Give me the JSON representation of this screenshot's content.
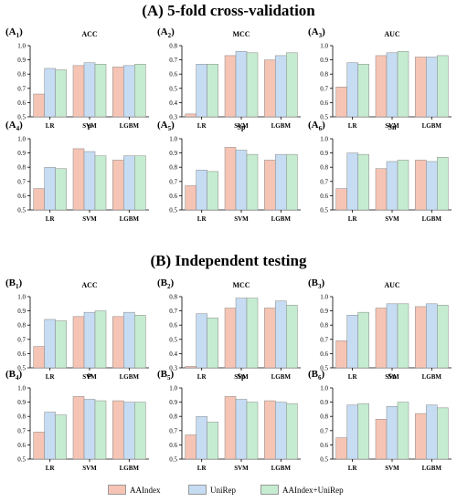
{
  "section_a_title": "(A) 5-fold cross-validation",
  "section_b_title": "(B) Independent testing",
  "series_names": [
    "AAIndex",
    "UniRep",
    "AAIndex+UniRep"
  ],
  "colors": {
    "AAIndex": "#f6c4b4",
    "UniRep": "#c5dcf3",
    "AAIndex+UniRep": "#c5ecd0",
    "edge": "#888888"
  },
  "chart_data": [
    {
      "type": "bar",
      "panel": "A",
      "subscript": "1",
      "title": "ACC",
      "categories": [
        "LR",
        "SVM",
        "LGBM"
      ],
      "ylim": [
        0.5,
        1.0
      ],
      "ticks": [
        0.5,
        0.6,
        0.7,
        0.8,
        0.9,
        1.0
      ],
      "series": [
        {
          "name": "AAIndex",
          "values": [
            0.66,
            0.86,
            0.85
          ]
        },
        {
          "name": "UniRep",
          "values": [
            0.84,
            0.88,
            0.86
          ]
        },
        {
          "name": "AAIndex+UniRep",
          "values": [
            0.83,
            0.87,
            0.87
          ]
        }
      ]
    },
    {
      "type": "bar",
      "panel": "A",
      "subscript": "2",
      "title": "MCC",
      "categories": [
        "LR",
        "SVM",
        "LGBM"
      ],
      "ylim": [
        0.3,
        0.8
      ],
      "ticks": [
        0.3,
        0.4,
        0.5,
        0.6,
        0.7,
        0.8
      ],
      "series": [
        {
          "name": "AAIndex",
          "values": [
            0.32,
            0.73,
            0.7
          ]
        },
        {
          "name": "UniRep",
          "values": [
            0.67,
            0.76,
            0.73
          ]
        },
        {
          "name": "AAIndex+UniRep",
          "values": [
            0.67,
            0.75,
            0.75
          ]
        }
      ]
    },
    {
      "type": "bar",
      "panel": "A",
      "subscript": "3",
      "title": "AUC",
      "categories": [
        "LR",
        "SVM",
        "LGBM"
      ],
      "ylim": [
        0.5,
        1.0
      ],
      "ticks": [
        0.5,
        0.6,
        0.7,
        0.8,
        0.9,
        1.0
      ],
      "series": [
        {
          "name": "AAIndex",
          "values": [
            0.71,
            0.93,
            0.92
          ]
        },
        {
          "name": "UniRep",
          "values": [
            0.88,
            0.95,
            0.92
          ]
        },
        {
          "name": "AAIndex+UniRep",
          "values": [
            0.87,
            0.96,
            0.93
          ]
        }
      ]
    },
    {
      "type": "bar",
      "panel": "A",
      "subscript": "4",
      "title": "P",
      "categories": [
        "LR",
        "SVM",
        "LGBM"
      ],
      "ylim": [
        0.5,
        1.0
      ],
      "ticks": [
        0.5,
        0.6,
        0.7,
        0.8,
        0.9,
        1.0
      ],
      "series": [
        {
          "name": "AAIndex",
          "values": [
            0.65,
            0.93,
            0.85
          ]
        },
        {
          "name": "UniRep",
          "values": [
            0.8,
            0.91,
            0.88
          ]
        },
        {
          "name": "AAIndex+UniRep",
          "values": [
            0.79,
            0.88,
            0.88
          ]
        }
      ]
    },
    {
      "type": "bar",
      "panel": "A",
      "subscript": "5",
      "title": "Sp",
      "categories": [
        "LR",
        "SVM",
        "LGBM"
      ],
      "ylim": [
        0.5,
        1.0
      ],
      "ticks": [
        0.5,
        0.6,
        0.7,
        0.8,
        0.9,
        1.0
      ],
      "series": [
        {
          "name": "AAIndex",
          "values": [
            0.67,
            0.94,
            0.85
          ]
        },
        {
          "name": "UniRep",
          "values": [
            0.78,
            0.92,
            0.89
          ]
        },
        {
          "name": "AAIndex+UniRep",
          "values": [
            0.77,
            0.89,
            0.89
          ]
        }
      ]
    },
    {
      "type": "bar",
      "panel": "A",
      "subscript": "6",
      "title": "Sn",
      "categories": [
        "LR",
        "SVM",
        "LGBM"
      ],
      "ylim": [
        0.5,
        1.0
      ],
      "ticks": [
        0.5,
        0.6,
        0.7,
        0.8,
        0.9,
        1.0
      ],
      "series": [
        {
          "name": "AAIndex",
          "values": [
            0.65,
            0.79,
            0.85
          ]
        },
        {
          "name": "UniRep",
          "values": [
            0.9,
            0.84,
            0.84
          ]
        },
        {
          "name": "AAIndex+UniRep",
          "values": [
            0.89,
            0.85,
            0.87
          ]
        }
      ]
    },
    {
      "type": "bar",
      "panel": "B",
      "subscript": "1",
      "title": "ACC",
      "categories": [
        "LR",
        "SVM",
        "LGBM"
      ],
      "ylim": [
        0.5,
        1.0
      ],
      "ticks": [
        0.5,
        0.6,
        0.7,
        0.8,
        0.9,
        1.0
      ],
      "series": [
        {
          "name": "AAIndex",
          "values": [
            0.65,
            0.86,
            0.86
          ]
        },
        {
          "name": "UniRep",
          "values": [
            0.84,
            0.89,
            0.89
          ]
        },
        {
          "name": "AAIndex+UniRep",
          "values": [
            0.83,
            0.9,
            0.87
          ]
        }
      ]
    },
    {
      "type": "bar",
      "panel": "B",
      "subscript": "2",
      "title": "MCC",
      "categories": [
        "LR",
        "SVM",
        "LGBM"
      ],
      "ylim": [
        0.3,
        0.8
      ],
      "ticks": [
        0.3,
        0.4,
        0.5,
        0.6,
        0.7,
        0.8
      ],
      "series": [
        {
          "name": "AAIndex",
          "values": [
            0.31,
            0.72,
            0.72
          ]
        },
        {
          "name": "UniRep",
          "values": [
            0.68,
            0.79,
            0.77
          ]
        },
        {
          "name": "AAIndex+UniRep",
          "values": [
            0.65,
            0.79,
            0.74
          ]
        }
      ]
    },
    {
      "type": "bar",
      "panel": "B",
      "subscript": "3",
      "title": "AUC",
      "categories": [
        "LR",
        "SVM",
        "LGBM"
      ],
      "ylim": [
        0.5,
        1.0
      ],
      "ticks": [
        0.5,
        0.6,
        0.7,
        0.8,
        0.9,
        1.0
      ],
      "series": [
        {
          "name": "AAIndex",
          "values": [
            0.69,
            0.92,
            0.93
          ]
        },
        {
          "name": "UniRep",
          "values": [
            0.87,
            0.95,
            0.95
          ]
        },
        {
          "name": "AAIndex+UniRep",
          "values": [
            0.89,
            0.95,
            0.94
          ]
        }
      ]
    },
    {
      "type": "bar",
      "panel": "B",
      "subscript": "4",
      "title": "P",
      "categories": [
        "LR",
        "SVM",
        "LGBM"
      ],
      "ylim": [
        0.5,
        1.0
      ],
      "ticks": [
        0.5,
        0.6,
        0.7,
        0.8,
        0.9,
        1.0
      ],
      "series": [
        {
          "name": "AAIndex",
          "values": [
            0.69,
            0.94,
            0.91
          ]
        },
        {
          "name": "UniRep",
          "values": [
            0.83,
            0.92,
            0.9
          ]
        },
        {
          "name": "AAIndex+UniRep",
          "values": [
            0.81,
            0.91,
            0.9
          ]
        }
      ]
    },
    {
      "type": "bar",
      "panel": "B",
      "subscript": "5",
      "title": "Sp",
      "categories": [
        "LR",
        "SVM",
        "LGBM"
      ],
      "ylim": [
        0.5,
        1.0
      ],
      "ticks": [
        0.5,
        0.6,
        0.7,
        0.8,
        0.9,
        1.0
      ],
      "series": [
        {
          "name": "AAIndex",
          "values": [
            0.67,
            0.94,
            0.91
          ]
        },
        {
          "name": "UniRep",
          "values": [
            0.8,
            0.92,
            0.9
          ]
        },
        {
          "name": "AAIndex+UniRep",
          "values": [
            0.76,
            0.9,
            0.89
          ]
        }
      ]
    },
    {
      "type": "bar",
      "panel": "B",
      "subscript": "6",
      "title": "Sn",
      "categories": [
        "LR",
        "SVM",
        "LGBM"
      ],
      "ylim": [
        0.5,
        1.0
      ],
      "ticks": [
        0.5,
        0.6,
        0.7,
        0.8,
        0.9,
        1.0
      ],
      "series": [
        {
          "name": "AAIndex",
          "values": [
            0.65,
            0.78,
            0.82
          ]
        },
        {
          "name": "UniRep",
          "values": [
            0.88,
            0.87,
            0.88
          ]
        },
        {
          "name": "AAIndex+UniRep",
          "values": [
            0.89,
            0.9,
            0.86
          ]
        }
      ]
    }
  ]
}
